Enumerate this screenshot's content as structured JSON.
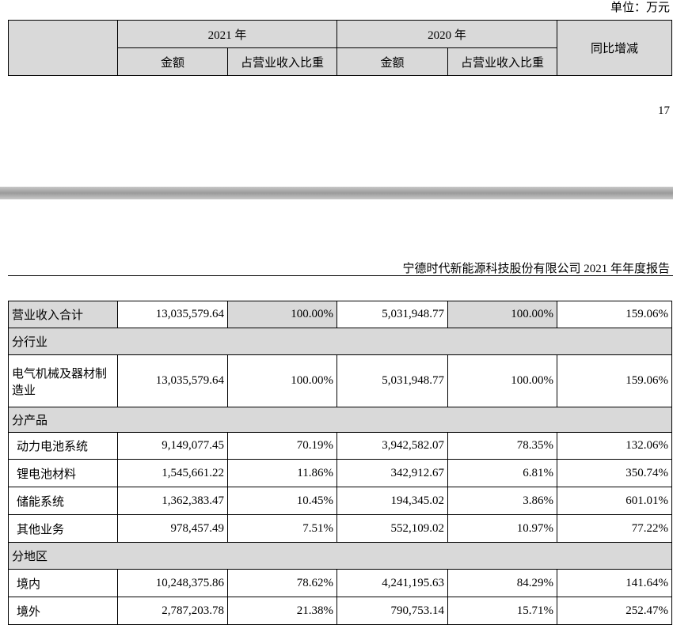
{
  "unit": "单位：万元",
  "header": {
    "year_a": "2021 年",
    "year_b": "2020 年",
    "change": "同比增减",
    "sub": [
      "金额",
      "占营业收入比重",
      "金额",
      "占营业收入比重"
    ]
  },
  "page_number": "17",
  "report_title": "宁德时代新能源科技股份有限公司 2021 年年度报告",
  "table": {
    "rows": [
      [
        "营业收入合计",
        "13,035,579.64",
        "100.00%",
        "5,031,948.77",
        "100.00%",
        "159.06%"
      ],
      [
        "分行业"
      ],
      [
        "电气机械及器材制造业",
        "13,035,579.64",
        "100.00%",
        "5,031,948.77",
        "100.00%",
        "159.06%"
      ],
      [
        "分产品"
      ],
      [
        "动力电池系统",
        "9,149,077.45",
        "70.19%",
        "3,942,582.07",
        "78.35%",
        "132.06%"
      ],
      [
        "锂电池材料",
        "1,545,661.22",
        "11.86%",
        "342,912.67",
        "6.81%",
        "350.74%"
      ],
      [
        "储能系统",
        "1,362,383.47",
        "10.45%",
        "194,345.02",
        "3.86%",
        "601.01%"
      ],
      [
        "其他业务",
        "978,457.49",
        "7.51%",
        "552,109.02",
        "10.97%",
        "77.22%"
      ],
      [
        "分地区"
      ],
      [
        "境内",
        "10,248,375.86",
        "78.62%",
        "4,241,195.63",
        "84.29%",
        "141.64%"
      ],
      [
        "境外",
        "2,787,203.78",
        "21.38%",
        "790,753.14",
        "15.71%",
        "252.47%"
      ]
    ]
  }
}
